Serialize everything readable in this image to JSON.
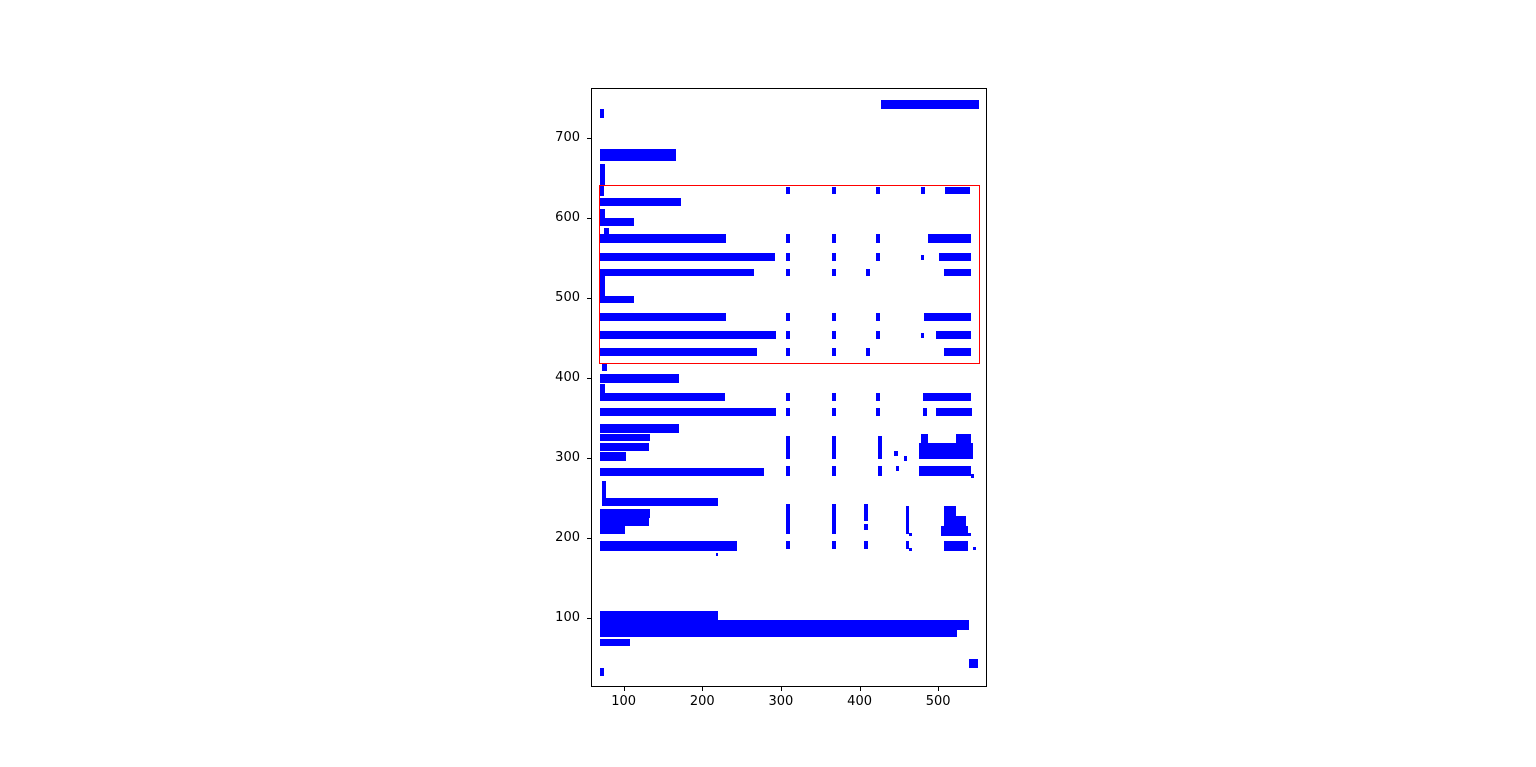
{
  "figure": {
    "background": "#ffffff",
    "bar_color": "#0000ff",
    "highlight_color": "#ff0000",
    "axes_color": "#000000"
  },
  "chart_data": {
    "type": "rectangles-layout",
    "title": "",
    "xlabel": "",
    "ylabel": "",
    "grid": false,
    "legend": null,
    "xlim": [
      59.7,
      560.8
    ],
    "ylim": [
      15,
      761.3
    ],
    "x_ticks": [
      100,
      200,
      300,
      400,
      500
    ],
    "y_ticks": [
      100,
      200,
      300,
      400,
      500,
      600,
      700
    ],
    "highlight_box": {
      "x": 68.2,
      "y": 420.4,
      "width": 482.7,
      "height": 220.5
    },
    "bars": [
      [
        427.0,
        736.6,
        125.2,
        11.3
      ],
      [
        69.4,
        724.6,
        5.5,
        11.3
      ],
      [
        69.4,
        671.2,
        97.7,
        14.7
      ],
      [
        69.4,
        640.9,
        7.3,
        26.2
      ],
      [
        70.3,
        627.5,
        5.1,
        18.8
      ],
      [
        306.0,
        629.9,
        5.1,
        9.4
      ],
      [
        365.5,
        629.9,
        5.1,
        9.4
      ],
      [
        420.6,
        629.9,
        5.1,
        9.4
      ],
      [
        477.9,
        629.9,
        5.2,
        9.4
      ],
      [
        509.0,
        629.9,
        31.7,
        9.4
      ],
      [
        68.2,
        614.9,
        105.3,
        10.5
      ],
      [
        70.3,
        600.4,
        6.4,
        10.5
      ],
      [
        70.3,
        590.0,
        42.4,
        10.4
      ],
      [
        75.4,
        579.6,
        5.5,
        8.3
      ],
      [
        70.3,
        569.1,
        159.3,
        10.5
      ],
      [
        306.0,
        569.1,
        5.1,
        10.5
      ],
      [
        365.5,
        569.1,
        5.1,
        10.5
      ],
      [
        420.6,
        569.1,
        5.1,
        10.5
      ],
      [
        487.3,
        569.1,
        54.3,
        10.5
      ],
      [
        70.3,
        546.3,
        222.1,
        10.4
      ],
      [
        306.0,
        546.3,
        5.1,
        10.4
      ],
      [
        365.5,
        546.3,
        5.1,
        10.4
      ],
      [
        420.6,
        546.3,
        5.1,
        10.4
      ],
      [
        477.9,
        548.0,
        4.3,
        6.3
      ],
      [
        501.3,
        546.3,
        40.3,
        10.4
      ],
      [
        70.3,
        527.5,
        195.3,
        8.4
      ],
      [
        306.0,
        527.5,
        5.1,
        8.4
      ],
      [
        365.5,
        527.5,
        5.1,
        8.4
      ],
      [
        407.9,
        527.5,
        5.1,
        8.4
      ],
      [
        507.0,
        527.5,
        34.6,
        8.4
      ],
      [
        70.3,
        494.1,
        6.4,
        33.4
      ],
      [
        70.3,
        494.1,
        42.4,
        8.4
      ],
      [
        70.3,
        471.3,
        159.3,
        10.4
      ],
      [
        306.0,
        471.3,
        5.1,
        10.4
      ],
      [
        365.5,
        471.3,
        5.1,
        10.4
      ],
      [
        420.6,
        471.3,
        5.1,
        10.4
      ],
      [
        482.0,
        471.3,
        59.6,
        10.4
      ],
      [
        70.3,
        448.4,
        222.9,
        10.4
      ],
      [
        306.0,
        448.4,
        5.1,
        10.4
      ],
      [
        365.5,
        448.4,
        5.1,
        10.4
      ],
      [
        420.6,
        448.4,
        5.1,
        10.4
      ],
      [
        477.9,
        450.0,
        4.3,
        6.3
      ],
      [
        497.0,
        448.4,
        44.6,
        10.4
      ],
      [
        70.3,
        427.5,
        199.6,
        10.4
      ],
      [
        306.0,
        427.5,
        5.1,
        10.4
      ],
      [
        365.5,
        427.5,
        5.1,
        10.4
      ],
      [
        407.9,
        427.5,
        5.1,
        10.4
      ],
      [
        507.0,
        427.5,
        34.6,
        10.4
      ],
      [
        72.4,
        408.8,
        6.5,
        10.3
      ],
      [
        70.3,
        394.1,
        99.8,
        10.5
      ],
      [
        70.3,
        371.3,
        6.4,
        20.8
      ],
      [
        70.3,
        371.3,
        158.4,
        10.4
      ],
      [
        306.0,
        371.3,
        5.4,
        10.4
      ],
      [
        365.5,
        371.3,
        5.1,
        10.4
      ],
      [
        420.6,
        371.3,
        5.1,
        10.4
      ],
      [
        480.1,
        371.3,
        61.5,
        10.4
      ],
      [
        70.3,
        352.5,
        222.9,
        10.4
      ],
      [
        306.0,
        352.5,
        5.4,
        10.4
      ],
      [
        365.5,
        352.5,
        5.1,
        10.4
      ],
      [
        420.6,
        352.5,
        5.1,
        10.4
      ],
      [
        480.1,
        352.5,
        5.5,
        10.4
      ],
      [
        497.0,
        352.5,
        46.7,
        10.4
      ],
      [
        70.3,
        331.6,
        99.8,
        10.5
      ],
      [
        70.3,
        321.3,
        63.7,
        8.4
      ],
      [
        70.3,
        308.8,
        61.5,
        10.3
      ],
      [
        70.3,
        296.3,
        33.1,
        11.3
      ],
      [
        306.0,
        298.4,
        5.4,
        29.1
      ],
      [
        365.5,
        298.4,
        5.1,
        29.1
      ],
      [
        422.8,
        298.4,
        5.1,
        29.1
      ],
      [
        477.9,
        319.1,
        8.6,
        10.5
      ],
      [
        522.5,
        319.1,
        19.1,
        10.5
      ],
      [
        475.8,
        298.4,
        67.9,
        20.7
      ],
      [
        444.0,
        302.5,
        4.3,
        6.3
      ],
      [
        456.7,
        296.3,
        4.3,
        6.3
      ],
      [
        70.3,
        277.5,
        208.0,
        10.4
      ],
      [
        306.0,
        277.5,
        5.4,
        12.5
      ],
      [
        365.5,
        277.5,
        5.1,
        12.5
      ],
      [
        422.8,
        277.5,
        5.1,
        12.5
      ],
      [
        446.2,
        283.8,
        4.2,
        6.2
      ],
      [
        475.8,
        277.5,
        65.8,
        12.5
      ],
      [
        541.6,
        275.4,
        3.4,
        4.2
      ],
      [
        72.4,
        250.4,
        5.6,
        20.9
      ],
      [
        72.4,
        240.0,
        147.9,
        10.4
      ],
      [
        70.3,
        225.4,
        63.7,
        10.5
      ],
      [
        70.3,
        215.0,
        61.5,
        10.4
      ],
      [
        70.3,
        204.6,
        31.9,
        10.4
      ],
      [
        306.0,
        221.3,
        5.4,
        20.8
      ],
      [
        365.5,
        221.3,
        5.1,
        20.8
      ],
      [
        405.7,
        221.3,
        5.4,
        20.8
      ],
      [
        458.8,
        215.0,
        4.2,
        25.0
      ],
      [
        306.0,
        204.6,
        5.4,
        16.7
      ],
      [
        365.5,
        204.6,
        5.1,
        16.7
      ],
      [
        405.7,
        210.0,
        5.4,
        8.0
      ],
      [
        458.8,
        204.6,
        4.2,
        10.4
      ],
      [
        463.1,
        202.5,
        3.4,
        4.2
      ],
      [
        507.6,
        225.4,
        14.9,
        14.6
      ],
      [
        507.6,
        215.0,
        27.7,
        12.5
      ],
      [
        503.4,
        202.5,
        34.0,
        12.5
      ],
      [
        537.4,
        202.5,
        4.2,
        4.2
      ],
      [
        70.3,
        183.8,
        174.2,
        12.5
      ],
      [
        306.0,
        185.9,
        5.4,
        10.4
      ],
      [
        365.5,
        185.9,
        5.1,
        10.4
      ],
      [
        405.7,
        185.9,
        5.4,
        10.4
      ],
      [
        458.8,
        185.9,
        4.2,
        10.4
      ],
      [
        463.1,
        183.8,
        3.4,
        4.2
      ],
      [
        507.6,
        183.8,
        29.8,
        12.5
      ],
      [
        543.7,
        185.0,
        4.2,
        4.2
      ],
      [
        216.8,
        177.5,
        3.0,
        4.2
      ],
      [
        70.3,
        97.5,
        149.9,
        11.3
      ],
      [
        70.3,
        85.0,
        469.2,
        12.5
      ],
      [
        70.3,
        76.6,
        453.5,
        8.4
      ],
      [
        70.3,
        65.0,
        37.3,
        9.1
      ],
      [
        539.5,
        37.9,
        10.7,
        10.5
      ],
      [
        70.3,
        27.5,
        4.2,
        10.4
      ]
    ]
  }
}
